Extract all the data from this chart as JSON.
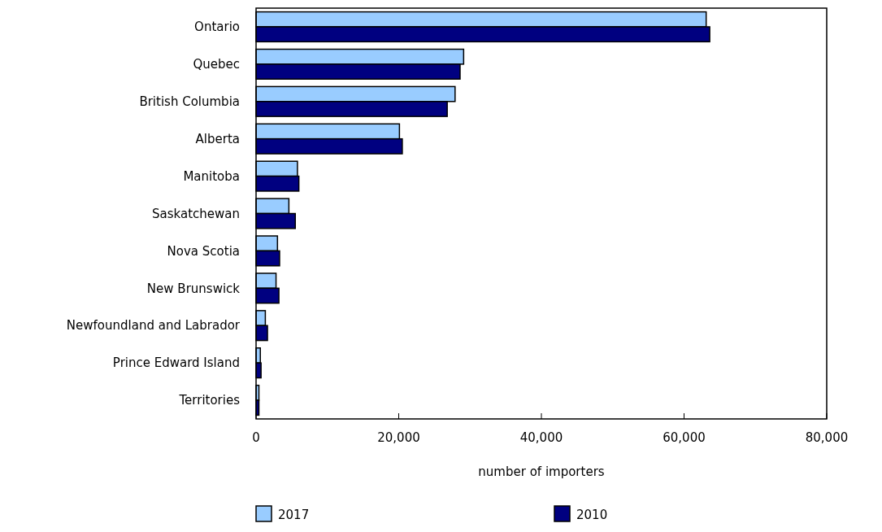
{
  "chart_data": {
    "type": "bar",
    "orientation": "horizontal",
    "xlabel": "number of importers",
    "categories": [
      "Ontario",
      "Quebec",
      "British Columbia",
      "Alberta",
      "Manitoba",
      "Saskatchewan",
      "Nova Scotia",
      "New Brunswick",
      "Newfoundland and Labrador",
      "Prince Edward Island",
      "Territories"
    ],
    "series": [
      {
        "name": "2017",
        "color": "#99ccff",
        "values": [
          63100,
          29100,
          27900,
          20100,
          5800,
          4600,
          3000,
          2800,
          1300,
          600,
          400
        ]
      },
      {
        "name": "2010",
        "color": "#000080",
        "values": [
          63600,
          28600,
          26800,
          20500,
          6000,
          5500,
          3300,
          3200,
          1600,
          700,
          400
        ]
      }
    ],
    "xlim": [
      0,
      80000
    ],
    "xticks": [
      {
        "value": 0,
        "label": "0"
      },
      {
        "value": 20000,
        "label": "20,000"
      },
      {
        "value": 40000,
        "label": "40,000"
      },
      {
        "value": 60000,
        "label": "60,000"
      },
      {
        "value": 80000,
        "label": "80,000"
      }
    ],
    "legend": "bottom",
    "grid": false
  }
}
